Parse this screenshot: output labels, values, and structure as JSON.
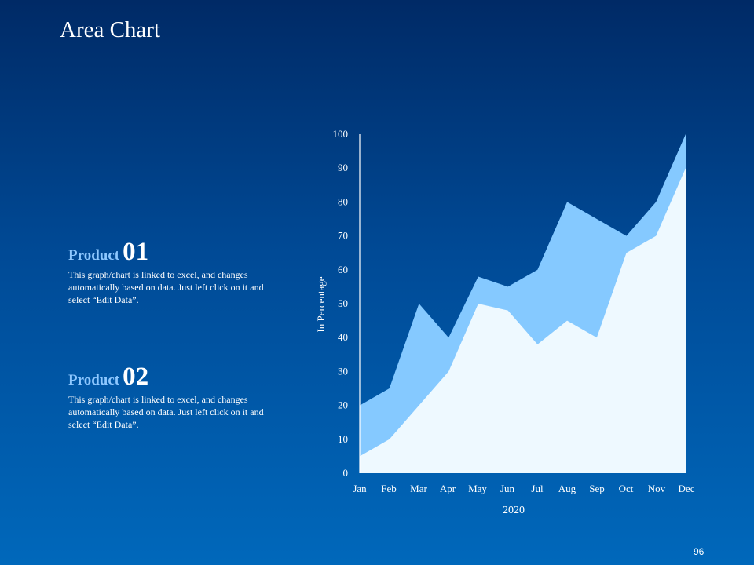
{
  "slide": {
    "title": "Area Chart",
    "page_number": "96"
  },
  "products": [
    {
      "label": "Product",
      "number": "01",
      "text": "This graph/chart  is linked to excel, and changes automatically based on data. Just left click on it and select “Edit Data”."
    },
    {
      "label": "Product",
      "number": "02",
      "text": "This graph/chart  is linked to excel, and changes automatically based on data. Just left click on it and select “Edit Data”."
    }
  ],
  "colors": {
    "series_back": "#85c9ff",
    "series_front": "#eef9ff",
    "axis": "#ffffff",
    "product_label": "#8ec8ff"
  },
  "chart_data": {
    "type": "area",
    "categories": [
      "Jan",
      "Feb",
      "Mar",
      "Apr",
      "May",
      "Jun",
      "Jul",
      "Aug",
      "Sep",
      "Oct",
      "Nov",
      "Dec"
    ],
    "series": [
      {
        "values": [
          20,
          25,
          50,
          40,
          58,
          55,
          60,
          80,
          75,
          70,
          80,
          100
        ]
      },
      {
        "values": [
          5,
          10,
          20,
          30,
          50,
          48,
          38,
          45,
          40,
          65,
          70,
          90
        ]
      }
    ],
    "xlabel": "2020",
    "ylabel": "In Percentage",
    "ylim": [
      0,
      100
    ],
    "yticks": [
      0,
      10,
      20,
      30,
      40,
      50,
      60,
      70,
      80,
      90,
      100
    ],
    "grid": false,
    "legend": "none"
  }
}
